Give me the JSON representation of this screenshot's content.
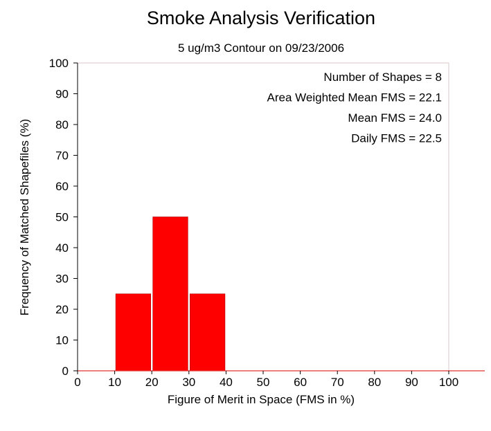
{
  "chart_data": {
    "type": "bar",
    "title": "Smoke Analysis Verification",
    "subtitle": "5 ug/m3 Contour on 09/23/2006",
    "xlabel": "Figure of Merit in Space (FMS in %)",
    "ylabel": "Frequency of Matched Shapefiles (%)",
    "xlim": [
      0,
      100
    ],
    "ylim": [
      0,
      100
    ],
    "x_ticks": [
      "0",
      "10",
      "20",
      "30",
      "40",
      "50",
      "60",
      "70",
      "80",
      "90",
      "100"
    ],
    "y_ticks": [
      "0",
      "10",
      "20",
      "30",
      "40",
      "50",
      "60",
      "70",
      "80",
      "90",
      "100"
    ],
    "bins": [
      {
        "x0": 0,
        "x1": 10,
        "value": 0
      },
      {
        "x0": 10,
        "x1": 20,
        "value": 25
      },
      {
        "x0": 20,
        "x1": 30,
        "value": 50
      },
      {
        "x0": 30,
        "x1": 40,
        "value": 25
      },
      {
        "x0": 40,
        "x1": 50,
        "value": 0
      },
      {
        "x0": 50,
        "x1": 60,
        "value": 0
      },
      {
        "x0": 60,
        "x1": 70,
        "value": 0
      },
      {
        "x0": 70,
        "x1": 80,
        "value": 0
      },
      {
        "x0": 80,
        "x1": 90,
        "value": 0
      },
      {
        "x0": 90,
        "x1": 100,
        "value": 0
      }
    ],
    "bar_color": "#ff0000",
    "annotations": [
      "Number of Shapes = 8",
      "Area Weighted Mean FMS = 22.1",
      "Mean FMS = 24.0",
      "Daily FMS = 22.5"
    ],
    "grid": false
  }
}
